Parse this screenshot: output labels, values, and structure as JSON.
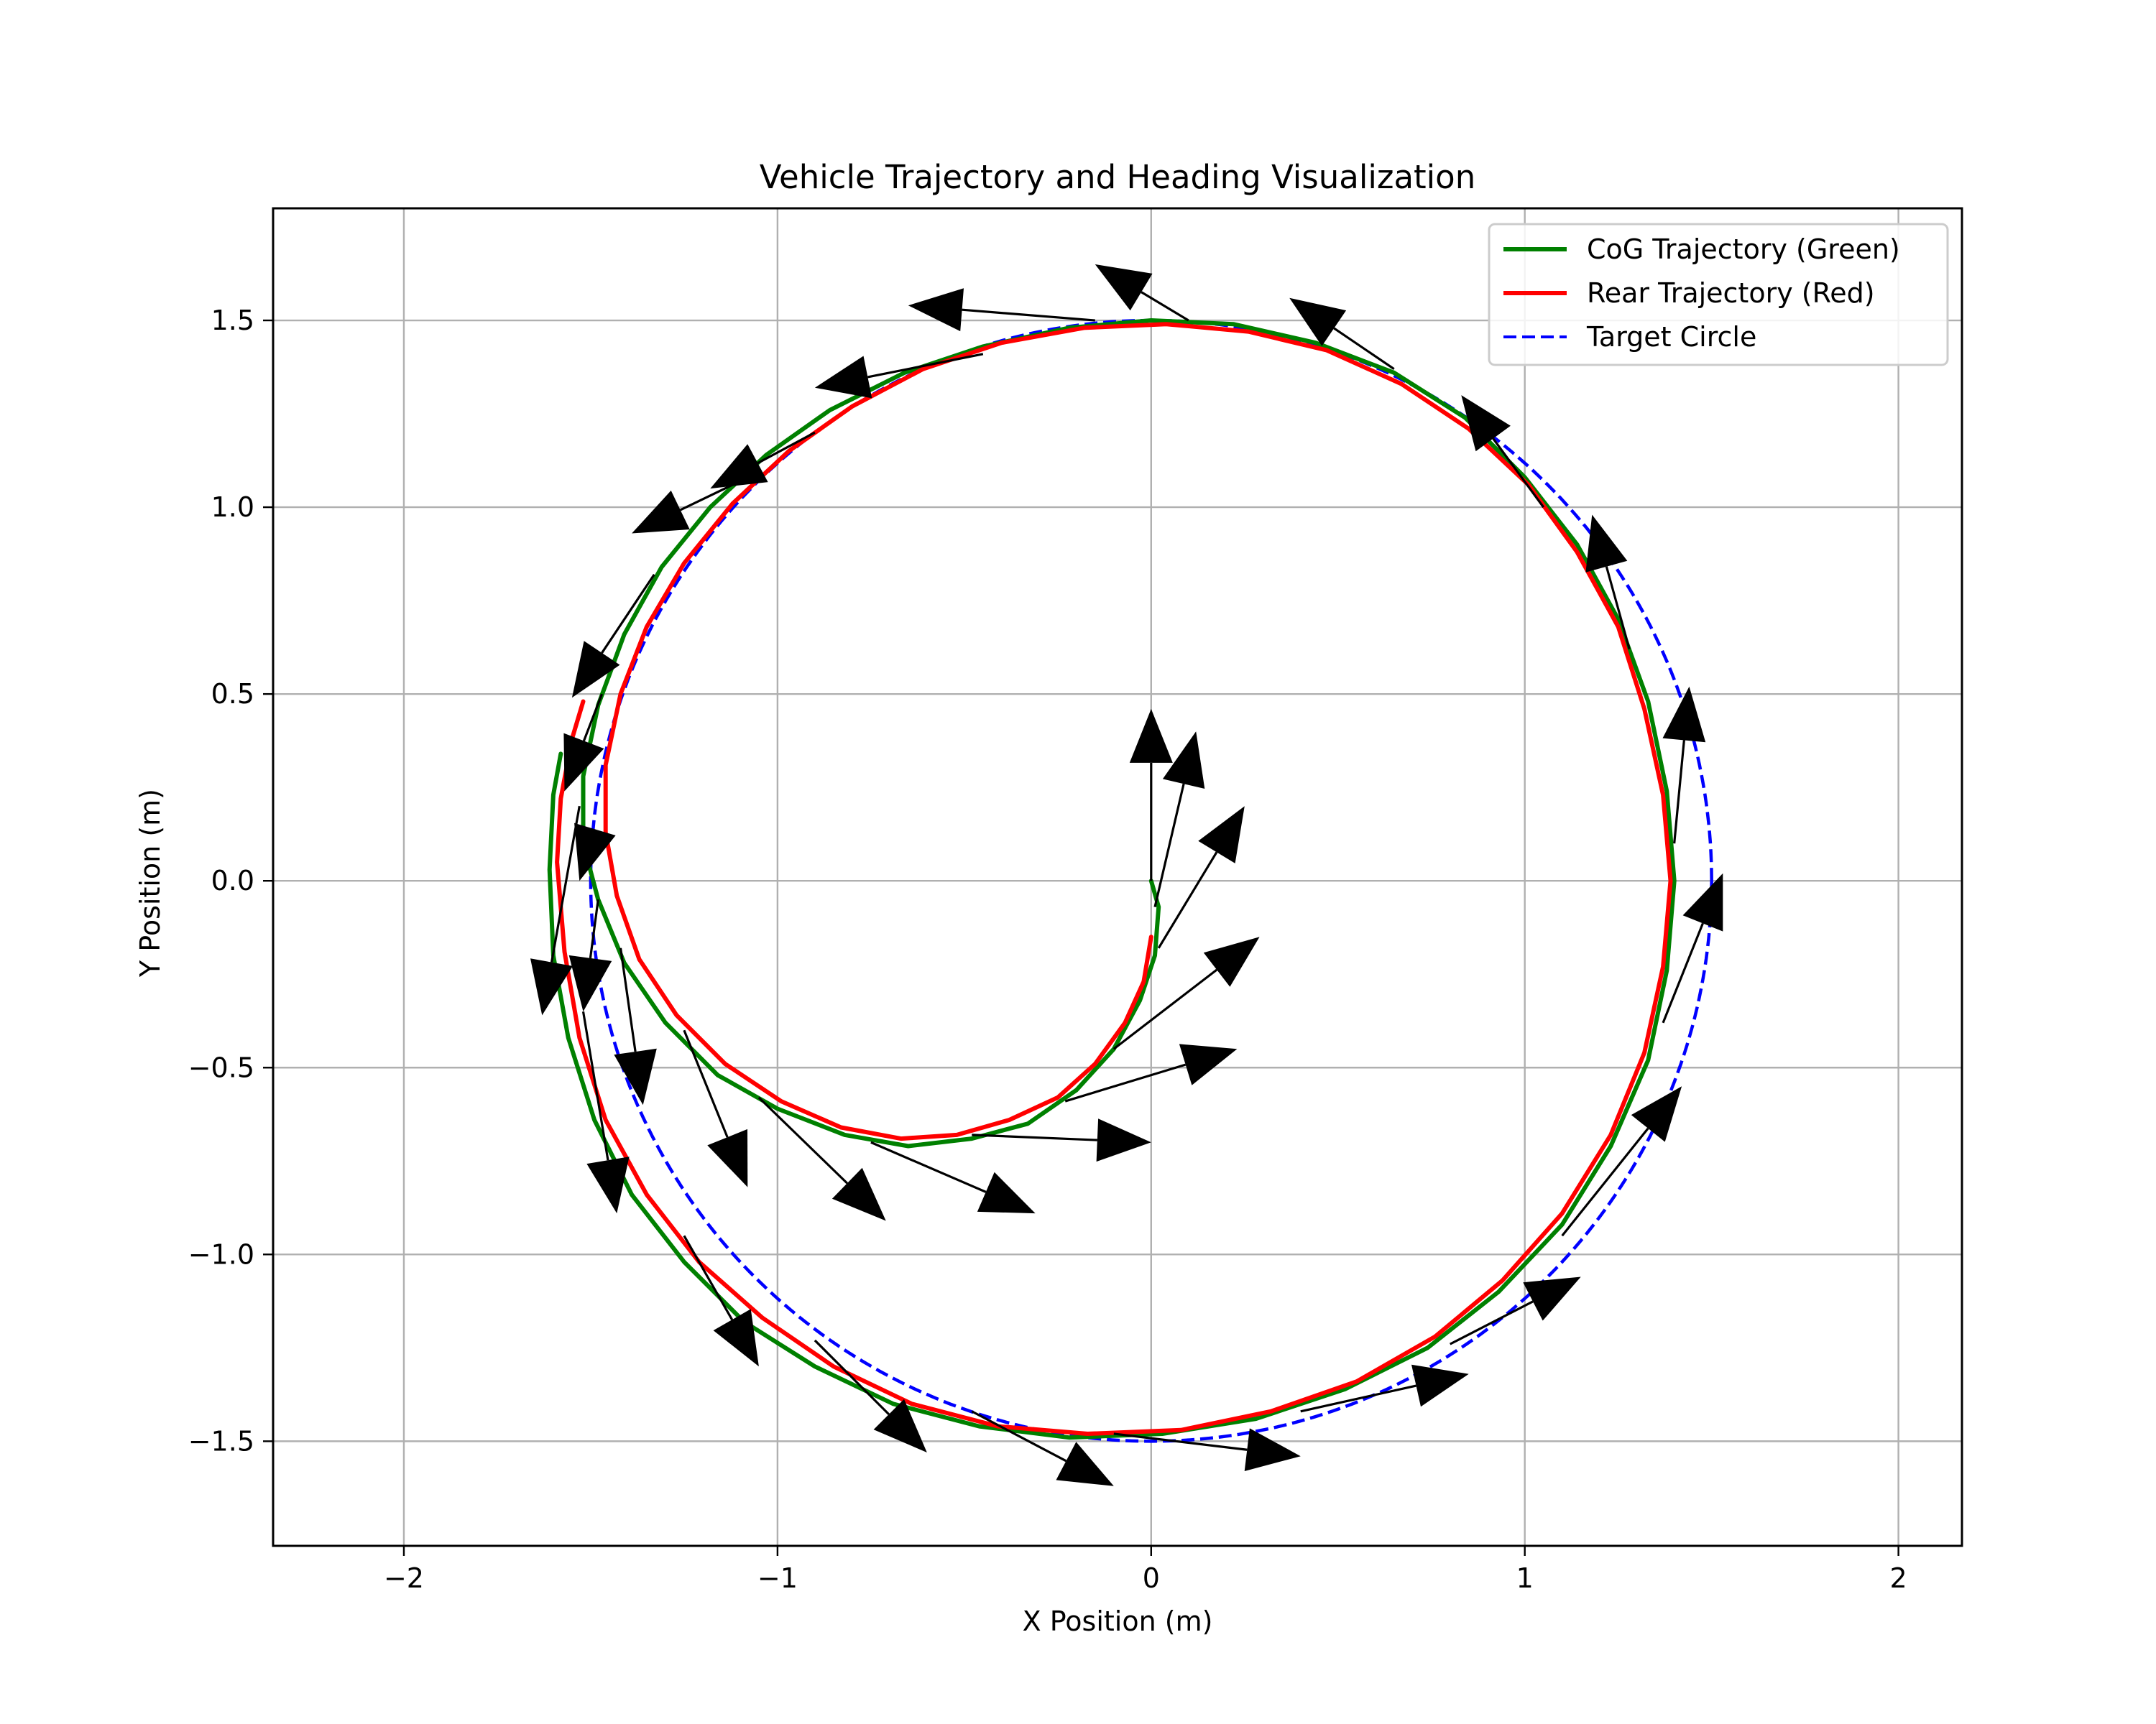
{
  "chart_data": {
    "type": "line",
    "title": "Vehicle Trajectory and Heading Visualization",
    "xlabel": "X Position (m)",
    "ylabel": "Y Position (m)",
    "xlim": [
      -2.35,
      2.17
    ],
    "ylim": [
      -1.78,
      1.8
    ],
    "xticks": [
      -2,
      -1,
      0,
      1,
      2
    ],
    "yticks": [
      -1.5,
      -1.0,
      -0.5,
      0.0,
      0.5,
      1.0,
      1.5
    ],
    "xtick_labels": [
      "−2",
      "−1",
      "0",
      "1",
      "2"
    ],
    "ytick_labels": [
      "−1.5",
      "−1.0",
      "−0.5",
      "0.0",
      "0.5",
      "1.0",
      "1.5"
    ],
    "grid": true,
    "legend_position": "top-right",
    "series": [
      {
        "name": "CoG Trajectory (Green)",
        "color": "#008000",
        "dash": "solid",
        "points": [
          [
            0.0,
            0.0
          ],
          [
            0.02,
            -0.07
          ],
          [
            0.01,
            -0.2
          ],
          [
            -0.03,
            -0.32
          ],
          [
            -0.1,
            -0.45
          ],
          [
            -0.2,
            -0.56
          ],
          [
            -0.33,
            -0.65
          ],
          [
            -0.48,
            -0.69
          ],
          [
            -0.65,
            -0.71
          ],
          [
            -0.82,
            -0.68
          ],
          [
            -1.0,
            -0.61
          ],
          [
            -1.16,
            -0.52
          ],
          [
            -1.3,
            -0.38
          ],
          [
            -1.41,
            -0.22
          ],
          [
            -1.48,
            -0.05
          ],
          [
            -1.52,
            0.1
          ],
          [
            -1.52,
            0.28
          ],
          [
            -1.48,
            0.47
          ],
          [
            -1.41,
            0.66
          ],
          [
            -1.31,
            0.84
          ],
          [
            -1.18,
            1.0
          ],
          [
            -1.03,
            1.14
          ],
          [
            -0.86,
            1.26
          ],
          [
            -0.66,
            1.36
          ],
          [
            -0.45,
            1.43
          ],
          [
            -0.22,
            1.48
          ],
          [
            0.0,
            1.5
          ],
          [
            0.22,
            1.49
          ],
          [
            0.44,
            1.44
          ],
          [
            0.65,
            1.36
          ],
          [
            0.84,
            1.24
          ],
          [
            1.0,
            1.08
          ],
          [
            1.14,
            0.9
          ],
          [
            1.25,
            0.7
          ],
          [
            1.33,
            0.48
          ],
          [
            1.38,
            0.24
          ],
          [
            1.4,
            0.0
          ],
          [
            1.38,
            -0.24
          ],
          [
            1.33,
            -0.48
          ],
          [
            1.23,
            -0.71
          ],
          [
            1.1,
            -0.92
          ],
          [
            0.93,
            -1.1
          ],
          [
            0.74,
            -1.25
          ],
          [
            0.52,
            -1.36
          ],
          [
            0.28,
            -1.44
          ],
          [
            0.03,
            -1.48
          ],
          [
            -0.22,
            -1.49
          ],
          [
            -0.46,
            -1.46
          ],
          [
            -0.69,
            -1.4
          ],
          [
            -0.9,
            -1.3
          ],
          [
            -1.09,
            -1.18
          ],
          [
            -1.25,
            -1.02
          ],
          [
            -1.39,
            -0.84
          ],
          [
            -1.49,
            -0.64
          ],
          [
            -1.56,
            -0.42
          ],
          [
            -1.6,
            -0.2
          ],
          [
            -1.61,
            0.03
          ],
          [
            -1.6,
            0.23
          ],
          [
            -1.58,
            0.34
          ]
        ]
      },
      {
        "name": "Rear Trajectory (Red)",
        "color": "#ff0000",
        "dash": "solid",
        "points": [
          [
            0.0,
            -0.15
          ],
          [
            -0.02,
            -0.27
          ],
          [
            -0.07,
            -0.38
          ],
          [
            -0.15,
            -0.49
          ],
          [
            -0.25,
            -0.58
          ],
          [
            -0.38,
            -0.64
          ],
          [
            -0.52,
            -0.68
          ],
          [
            -0.67,
            -0.69
          ],
          [
            -0.83,
            -0.66
          ],
          [
            -0.99,
            -0.59
          ],
          [
            -1.14,
            -0.49
          ],
          [
            -1.27,
            -0.36
          ],
          [
            -1.37,
            -0.21
          ],
          [
            -1.43,
            -0.04
          ],
          [
            -1.46,
            0.13
          ],
          [
            -1.46,
            0.31
          ],
          [
            -1.42,
            0.5
          ],
          [
            -1.35,
            0.68
          ],
          [
            -1.25,
            0.85
          ],
          [
            -1.12,
            1.01
          ],
          [
            -0.97,
            1.15
          ],
          [
            -0.8,
            1.27
          ],
          [
            -0.61,
            1.37
          ],
          [
            -0.4,
            1.44
          ],
          [
            -0.18,
            1.48
          ],
          [
            0.04,
            1.49
          ],
          [
            0.26,
            1.47
          ],
          [
            0.47,
            1.42
          ],
          [
            0.67,
            1.33
          ],
          [
            0.85,
            1.21
          ],
          [
            1.01,
            1.06
          ],
          [
            1.14,
            0.88
          ],
          [
            1.25,
            0.68
          ],
          [
            1.32,
            0.46
          ],
          [
            1.37,
            0.23
          ],
          [
            1.39,
            0.0
          ],
          [
            1.37,
            -0.23
          ],
          [
            1.32,
            -0.46
          ],
          [
            1.23,
            -0.68
          ],
          [
            1.1,
            -0.89
          ],
          [
            0.94,
            -1.07
          ],
          [
            0.76,
            -1.22
          ],
          [
            0.55,
            -1.34
          ],
          [
            0.32,
            -1.42
          ],
          [
            0.08,
            -1.47
          ],
          [
            -0.17,
            -1.48
          ],
          [
            -0.41,
            -1.46
          ],
          [
            -0.64,
            -1.4
          ],
          [
            -0.85,
            -1.3
          ],
          [
            -1.04,
            -1.17
          ],
          [
            -1.21,
            -1.02
          ],
          [
            -1.35,
            -0.84
          ],
          [
            -1.46,
            -0.64
          ],
          [
            -1.53,
            -0.42
          ],
          [
            -1.57,
            -0.19
          ],
          [
            -1.59,
            0.05
          ],
          [
            -1.58,
            0.22
          ],
          [
            -1.55,
            0.38
          ],
          [
            -1.52,
            0.48
          ]
        ]
      },
      {
        "name": "Target Circle",
        "color": "#0000ff",
        "dash": "dashed",
        "circle": {
          "center": [
            0,
            0
          ],
          "radius": 1.5
        }
      }
    ],
    "heading_arrows": [
      {
        "x": 0.0,
        "y": 0.0,
        "dx": 0.0,
        "dy": 0.46
      },
      {
        "x": 0.01,
        "y": -0.07,
        "dx": 0.11,
        "dy": 0.47
      },
      {
        "x": 0.02,
        "y": -0.18,
        "dx": 0.23,
        "dy": 0.38
      },
      {
        "x": -0.1,
        "y": -0.45,
        "dx": 0.39,
        "dy": 0.3
      },
      {
        "x": -0.23,
        "y": -0.59,
        "dx": 0.46,
        "dy": 0.14
      },
      {
        "x": -0.48,
        "y": -0.68,
        "dx": 0.48,
        "dy": -0.02
      },
      {
        "x": -0.75,
        "y": -0.7,
        "dx": 0.44,
        "dy": -0.19
      },
      {
        "x": -1.05,
        "y": -0.58,
        "dx": 0.34,
        "dy": -0.33
      },
      {
        "x": -1.25,
        "y": -0.4,
        "dx": 0.17,
        "dy": -0.42
      },
      {
        "x": -1.42,
        "y": -0.18,
        "dx": 0.06,
        "dy": -0.42
      },
      {
        "x": -1.48,
        "y": -0.05,
        "dx": -0.04,
        "dy": -0.3
      },
      {
        "x": -1.5,
        "y": 0.1,
        "dx": -0.03,
        "dy": -0.1
      },
      {
        "x": -1.53,
        "y": 0.2,
        "dx": -0.1,
        "dy": -0.56
      },
      {
        "x": -1.47,
        "y": 0.5,
        "dx": -0.1,
        "dy": -0.26
      },
      {
        "x": -1.33,
        "y": 0.82,
        "dx": -0.22,
        "dy": -0.33
      },
      {
        "x": -1.12,
        "y": 1.06,
        "dx": -0.27,
        "dy": -0.13
      },
      {
        "x": -0.9,
        "y": 1.2,
        "dx": -0.28,
        "dy": -0.15
      },
      {
        "x": -0.45,
        "y": 1.41,
        "dx": -0.45,
        "dy": -0.09
      },
      {
        "x": -0.15,
        "y": 1.5,
        "dx": -0.5,
        "dy": 0.04
      },
      {
        "x": 0.1,
        "y": 1.5,
        "dx": -0.25,
        "dy": 0.15
      },
      {
        "x": 0.65,
        "y": 1.37,
        "dx": -0.28,
        "dy": 0.19
      },
      {
        "x": 1.05,
        "y": 1.0,
        "dx": -0.22,
        "dy": 0.3
      },
      {
        "x": 1.28,
        "y": 0.62,
        "dx": -0.1,
        "dy": 0.36
      },
      {
        "x": 1.4,
        "y": 0.1,
        "dx": 0.04,
        "dy": 0.42
      },
      {
        "x": 1.37,
        "y": -0.38,
        "dx": 0.16,
        "dy": 0.4
      },
      {
        "x": 1.1,
        "y": -0.95,
        "dx": 0.32,
        "dy": 0.4
      },
      {
        "x": 0.8,
        "y": -1.24,
        "dx": 0.35,
        "dy": 0.18
      },
      {
        "x": 0.4,
        "y": -1.42,
        "dx": 0.45,
        "dy": 0.1
      },
      {
        "x": -0.1,
        "y": -1.48,
        "dx": 0.5,
        "dy": -0.06
      },
      {
        "x": -0.48,
        "y": -1.42,
        "dx": 0.38,
        "dy": -0.2
      },
      {
        "x": -0.9,
        "y": -1.23,
        "dx": 0.3,
        "dy": -0.3
      },
      {
        "x": -1.25,
        "y": -0.95,
        "dx": 0.2,
        "dy": -0.35
      },
      {
        "x": -1.52,
        "y": -0.35,
        "dx": 0.09,
        "dy": -0.54
      }
    ]
  },
  "legend_entries": [
    {
      "label": "CoG Trajectory (Green)",
      "color": "#008000",
      "dash": "solid"
    },
    {
      "label": "Rear Trajectory (Red)",
      "color": "#ff0000",
      "dash": "solid"
    },
    {
      "label": "Target Circle",
      "color": "#0000ff",
      "dash": "dashed"
    }
  ]
}
